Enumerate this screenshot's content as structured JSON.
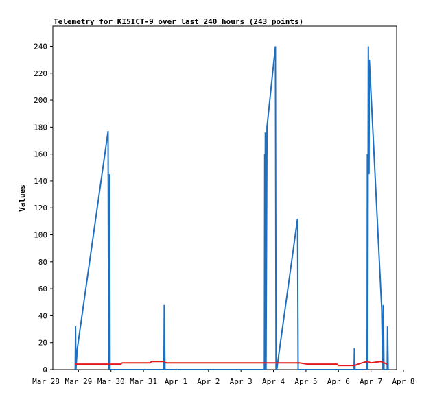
{
  "chart_data": {
    "type": "line",
    "title": "Telemetry for KI5ICT-9 over last 240 hours (243 points)",
    "xlabel": "",
    "ylabel": "Values",
    "x_tick_labels": [
      "Mar 28",
      "Mar 29",
      "Mar 30",
      "Mar 31",
      "Apr 1",
      "Apr 2",
      "Apr 3",
      "Apr 4",
      "Apr 5",
      "Apr 6",
      "Apr 7",
      "Apr 8"
    ],
    "xlim_days": [
      0,
      11
    ],
    "ylim": [
      0,
      255
    ],
    "y_ticks": [
      0,
      20,
      40,
      60,
      80,
      100,
      120,
      140,
      160,
      180,
      200,
      220,
      240
    ],
    "grid": false,
    "legend": "none",
    "series": [
      {
        "color": "#1f6fbf",
        "points": [
          [
            0.9,
            0
          ],
          [
            0.91,
            32
          ],
          [
            0.92,
            0
          ],
          [
            0.96,
            15
          ],
          [
            1.91,
            177
          ],
          [
            1.93,
            0
          ],
          [
            1.94,
            108
          ],
          [
            1.95,
            97
          ],
          [
            1.96,
            145
          ],
          [
            1.97,
            0
          ],
          [
            3.63,
            0
          ],
          [
            3.64,
            48
          ],
          [
            3.66,
            0
          ],
          [
            6.72,
            0
          ],
          [
            6.73,
            160
          ],
          [
            6.74,
            0
          ],
          [
            6.75,
            176
          ],
          [
            6.77,
            0
          ],
          [
            6.8,
            180
          ],
          [
            7.06,
            240
          ],
          [
            7.08,
            0
          ],
          [
            7.1,
            0
          ],
          [
            7.74,
            112
          ],
          [
            7.76,
            0
          ],
          [
            9.48,
            0
          ],
          [
            9.49,
            16
          ],
          [
            9.51,
            0
          ],
          [
            9.88,
            0
          ],
          [
            9.89,
            160
          ],
          [
            9.9,
            0
          ],
          [
            9.92,
            240
          ],
          [
            9.94,
            145
          ],
          [
            9.95,
            230
          ],
          [
            10.33,
            45
          ],
          [
            10.36,
            0
          ],
          [
            10.38,
            48
          ],
          [
            10.4,
            0
          ],
          [
            10.5,
            0
          ],
          [
            10.51,
            32
          ],
          [
            10.53,
            0
          ]
        ]
      },
      {
        "color": "#e41a1c",
        "points": [
          [
            0.9,
            4
          ],
          [
            2.3,
            4
          ],
          [
            2.35,
            5
          ],
          [
            3.2,
            5
          ],
          [
            3.25,
            6
          ],
          [
            3.63,
            6
          ],
          [
            3.7,
            5
          ],
          [
            7.8,
            5
          ],
          [
            8.05,
            4
          ],
          [
            8.95,
            4
          ],
          [
            9.0,
            3
          ],
          [
            9.5,
            3
          ],
          [
            9.6,
            4
          ],
          [
            9.88,
            6
          ],
          [
            10.0,
            5
          ],
          [
            10.3,
            6
          ],
          [
            10.5,
            4
          ]
        ]
      }
    ]
  }
}
